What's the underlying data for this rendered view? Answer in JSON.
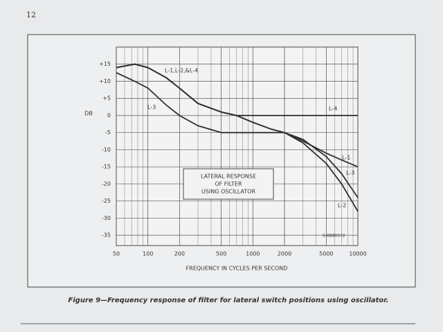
{
  "page_number": "12",
  "caption": "Figure 9—Frequency response of filter for lateral switch positions using oscillator.",
  "chart_data": {
    "type": "line",
    "box_lines": [
      "LATERAL RESPONSE",
      "OF FILTER",
      "USING OSCILLATOR"
    ],
    "y_label": "DB",
    "x_label": "FREQUENCY IN CYCLES PER SECOND",
    "drawing_number": "S-6880572",
    "annotations": [
      "L-1,L-2,&L-4",
      "L-3"
    ],
    "log_x": true,
    "grid": true,
    "x": [
      50,
      75,
      100,
      150,
      200,
      300,
      500,
      700,
      1000,
      1500,
      2000,
      3000,
      5000,
      7000,
      10000
    ],
    "xlim": [
      50,
      10000
    ],
    "xticks": [
      50,
      100,
      200,
      500,
      1000,
      2000,
      5000,
      10000
    ],
    "ylim": [
      -38,
      20
    ],
    "yticks": [
      {
        "value": 15,
        "label": "+15"
      },
      {
        "value": 10,
        "label": "+10"
      },
      {
        "value": 5,
        "label": "+5"
      },
      0,
      -5,
      -10,
      -15,
      -20,
      -25,
      -30,
      -35
    ],
    "series": [
      {
        "name": "L-4",
        "color": "#2e2e2e",
        "values": [
          14,
          15,
          14,
          11,
          8,
          3.5,
          1,
          0,
          0,
          0,
          0,
          0,
          0,
          0,
          0
        ]
      },
      {
        "name": "L-1",
        "color": "#2e2e2e",
        "values": [
          14,
          15,
          14,
          11,
          8,
          3.5,
          1,
          0,
          -2,
          -4,
          -5,
          -7.5,
          -11,
          -13,
          -15
        ]
      },
      {
        "name": "L-3",
        "color": "#2e2e2e",
        "values": [
          12.5,
          10,
          8,
          3,
          0,
          -3,
          -5,
          -5,
          -5,
          -5,
          -5,
          -7,
          -12,
          -17,
          -24
        ]
      },
      {
        "name": "L-2",
        "color": "#2e2e2e",
        "values": [
          14,
          15,
          14,
          11,
          8,
          3.5,
          1,
          0,
          -2,
          -4,
          -5,
          -8,
          -14,
          -20,
          -28
        ]
      }
    ]
  }
}
